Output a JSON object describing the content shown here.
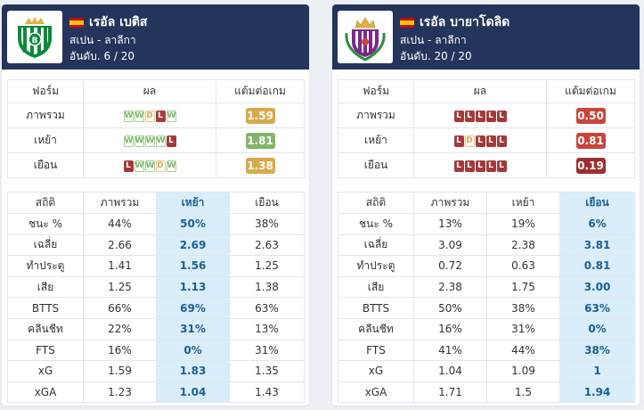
{
  "teams": [
    {
      "name": "เรอัล เบติส",
      "league": "สเปน - ลาลีกา",
      "rank": "อันดับ. 6 / 20",
      "logo_icon": "real-betis-crest-icon",
      "form_headers": [
        "ฟอร์ม",
        "ผล",
        "แต้มต่อเกม"
      ],
      "form_rows": [
        {
          "label": "ภาพรวม",
          "results": [
            "W",
            "W",
            "D",
            "L",
            "W"
          ],
          "ppg": "1.59",
          "ppg_color": "#d9a94a"
        },
        {
          "label": "เหย้า",
          "results": [
            "W",
            "W",
            "W",
            "W",
            "L"
          ],
          "ppg": "1.81",
          "ppg_color": "#83b56a"
        },
        {
          "label": "เยือน",
          "results": [
            "L",
            "W",
            "W",
            "D",
            "W"
          ],
          "ppg": "1.38",
          "ppg_color": "#d9a94a"
        }
      ],
      "stats_headers": [
        "สถิติ",
        "ภาพรวม",
        "เหย้า",
        "เยือน"
      ],
      "highlight_col": 2,
      "stats_rows": [
        [
          "ชนะ %",
          "44%",
          "50%",
          "38%"
        ],
        [
          "เฉลี่ย",
          "2.66",
          "2.69",
          "2.63"
        ],
        [
          "ทำประตู",
          "1.41",
          "1.56",
          "1.25"
        ],
        [
          "เสีย",
          "1.25",
          "1.13",
          "1.38"
        ],
        [
          "BTTS",
          "66%",
          "69%",
          "63%"
        ],
        [
          "คลีนชีท",
          "22%",
          "31%",
          "13%"
        ],
        [
          "FTS",
          "16%",
          "0%",
          "31%"
        ],
        [
          "xG",
          "1.59",
          "1.83",
          "1.35"
        ],
        [
          "xGA",
          "1.23",
          "1.04",
          "1.43"
        ]
      ]
    },
    {
      "name": "เรอัล บายาโดลิด",
      "league": "สเปน - ลาลีกา",
      "rank": "อันดับ. 20 / 20",
      "logo_icon": "real-valladolid-crest-icon",
      "form_headers": [
        "ฟอร์ม",
        "ผล",
        "แต้มต่อเกม"
      ],
      "form_rows": [
        {
          "label": "ภาพรวม",
          "results": [
            "L",
            "L",
            "L",
            "L",
            "L"
          ],
          "ppg": "0.50",
          "ppg_color": "#c9453a"
        },
        {
          "label": "เหย้า",
          "results": [
            "L",
            "D",
            "L",
            "L",
            "L"
          ],
          "ppg": "0.81",
          "ppg_color": "#c9453a"
        },
        {
          "label": "เยือน",
          "results": [
            "L",
            "L",
            "L",
            "L",
            "L"
          ],
          "ppg": "0.19",
          "ppg_color": "#9e2f2f"
        }
      ],
      "stats_headers": [
        "สถิติ",
        "ภาพรวม",
        "เหย้า",
        "เยือน"
      ],
      "highlight_col": 3,
      "stats_rows": [
        [
          "ชนะ %",
          "13%",
          "19%",
          "6%"
        ],
        [
          "เฉลี่ย",
          "3.09",
          "2.38",
          "3.81"
        ],
        [
          "ทำประตู",
          "0.72",
          "0.63",
          "0.81"
        ],
        [
          "เสีย",
          "2.38",
          "1.75",
          "3.00"
        ],
        [
          "BTTS",
          "50%",
          "38%",
          "63%"
        ],
        [
          "คลีนชีท",
          "16%",
          "31%",
          "0%"
        ],
        [
          "FTS",
          "41%",
          "44%",
          "38%"
        ],
        [
          "xG",
          "1.04",
          "1.09",
          "1"
        ],
        [
          "xGA",
          "1.71",
          "1.5",
          "1.94"
        ]
      ]
    }
  ]
}
